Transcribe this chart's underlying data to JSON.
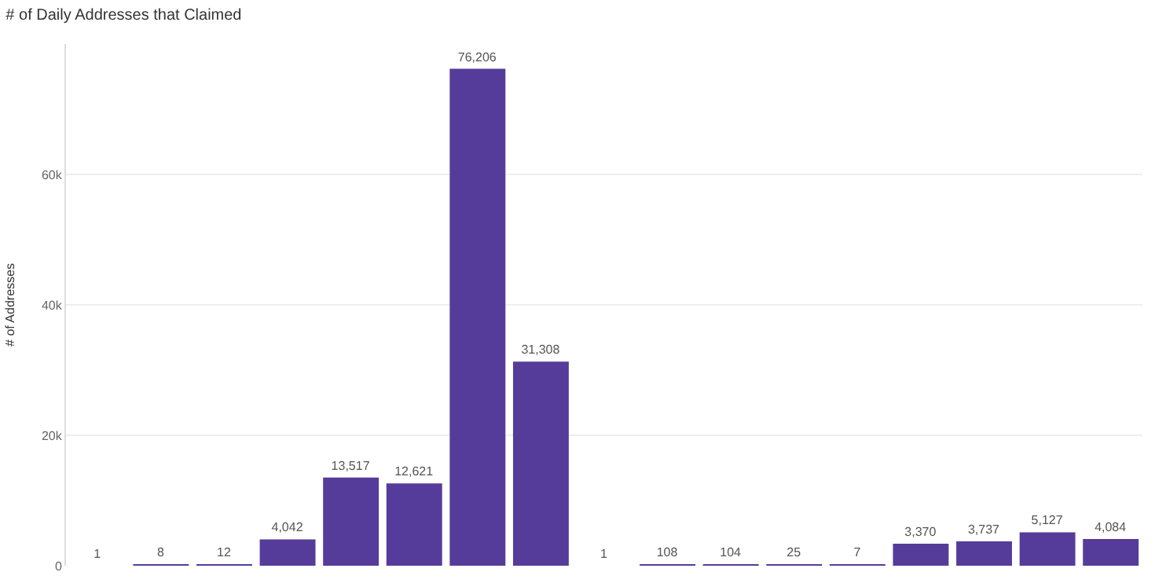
{
  "chart_data": {
    "type": "bar",
    "title": "# of Daily Addresses that Claimed",
    "ylabel": "# of Addresses",
    "categories": [
      null,
      null,
      null,
      null,
      null,
      null,
      null,
      null,
      null,
      null,
      null,
      null,
      null,
      null,
      null,
      null,
      null
    ],
    "values": [
      1,
      8,
      12,
      4042,
      13517,
      12621,
      76206,
      31308,
      1,
      108,
      104,
      25,
      7,
      3370,
      3737,
      5127,
      4084
    ],
    "value_labels": [
      "1",
      "8",
      "12",
      "4,042",
      "13,517",
      "12,621",
      "76,206",
      "31,308",
      "1",
      "108",
      "104",
      "25",
      "7",
      "3,370",
      "3,737",
      "5,127",
      "4,084"
    ],
    "color": "#553c9a",
    "grid": "y",
    "ylim": [
      0,
      80000
    ],
    "yticks": [
      0,
      {
        "value": 20000,
        "label": "20k"
      },
      {
        "value": 40000,
        "label": "40k"
      },
      {
        "value": 60000,
        "label": "60k"
      }
    ]
  }
}
